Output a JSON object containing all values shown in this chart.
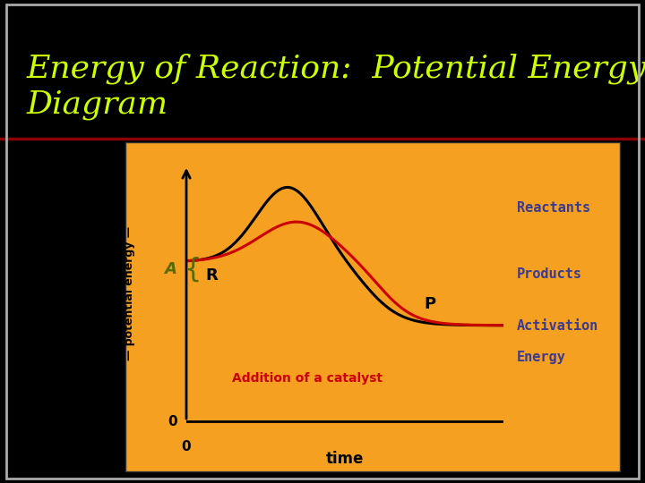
{
  "title_line1": "Energy of Reaction:  Potential Energy",
  "title_line2": "Diagram",
  "title_color": "#ccff00",
  "bg_color": "#000000",
  "panel_bg": "#f5a020",
  "title_fontsize": 26,
  "separator_color": "#8b0000",
  "curve1_color": "#000000",
  "curve2_color": "#cc0000",
  "legend_labels": [
    "Reactants",
    "Products",
    "Activation\nEnergy"
  ],
  "legend_color": "#3b3b8f",
  "annotation_A_color": "#556b00",
  "annotation_R_color": "#000000",
  "annotation_P_color": "#000000",
  "catalyst_label": "Addition of a catalyst",
  "catalyst_color": "#cc0000",
  "border_color": "#888888"
}
